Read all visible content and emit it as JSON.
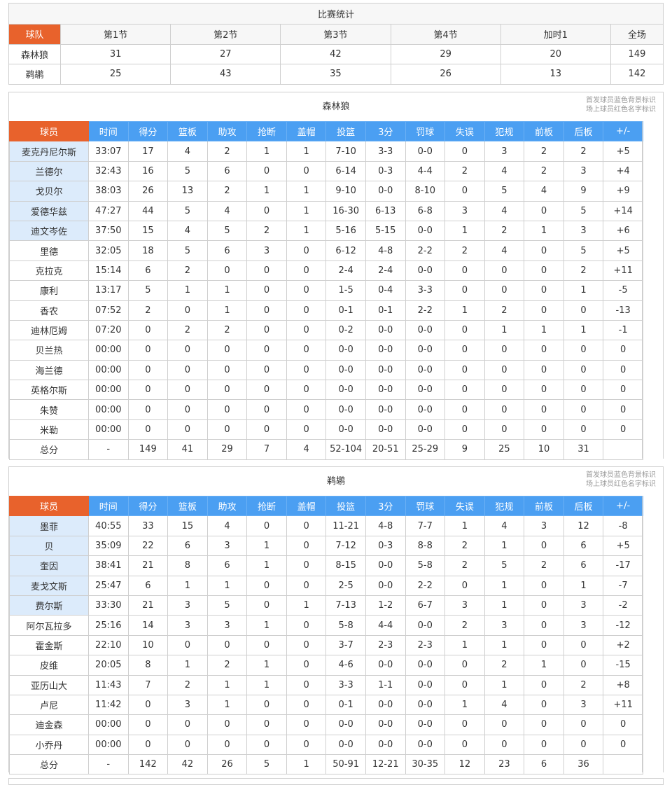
{
  "summary": {
    "title": "比赛统计",
    "headers": [
      "球队",
      "第1节",
      "第2节",
      "第3节",
      "第4节",
      "加时1",
      "全场"
    ],
    "rows": [
      [
        "森林狼",
        "31",
        "27",
        "42",
        "29",
        "20",
        "149"
      ],
      [
        "鹈鹕",
        "25",
        "43",
        "35",
        "26",
        "13",
        "142"
      ]
    ]
  },
  "colors": {
    "accent": "#e8622c",
    "header_blue": "#4b9ff2",
    "starter_bg": "#dcebfb"
  },
  "columns": [
    "球员",
    "时间",
    "得分",
    "篮板",
    "助攻",
    "抢断",
    "盖帽",
    "投篮",
    "3分",
    "罚球",
    "失误",
    "犯规",
    "前板",
    "后板",
    "+/-"
  ],
  "teams": [
    {
      "name": "森林狼",
      "note1": "首发球员蓝色背景标识",
      "note2": "场上球员红色名字标识",
      "starters": 5,
      "rows": [
        [
          "麦克丹尼尔斯",
          "33:07",
          "17",
          "4",
          "2",
          "1",
          "1",
          "7-10",
          "3-3",
          "0-0",
          "0",
          "3",
          "2",
          "2",
          "+5"
        ],
        [
          "兰德尔",
          "32:43",
          "16",
          "5",
          "6",
          "0",
          "0",
          "6-14",
          "0-3",
          "4-4",
          "2",
          "4",
          "2",
          "3",
          "+4"
        ],
        [
          "戈贝尔",
          "38:03",
          "26",
          "13",
          "2",
          "1",
          "1",
          "9-10",
          "0-0",
          "8-10",
          "0",
          "5",
          "4",
          "9",
          "+9"
        ],
        [
          "爱德华兹",
          "47:27",
          "44",
          "5",
          "4",
          "0",
          "1",
          "16-30",
          "6-13",
          "6-8",
          "3",
          "4",
          "0",
          "5",
          "+14"
        ],
        [
          "迪文岑佐",
          "37:50",
          "15",
          "4",
          "5",
          "2",
          "1",
          "5-16",
          "5-15",
          "0-0",
          "1",
          "2",
          "1",
          "3",
          "+6"
        ],
        [
          "里德",
          "32:05",
          "18",
          "5",
          "6",
          "3",
          "0",
          "6-12",
          "4-8",
          "2-2",
          "2",
          "4",
          "0",
          "5",
          "+5"
        ],
        [
          "克拉克",
          "15:14",
          "6",
          "2",
          "0",
          "0",
          "0",
          "2-4",
          "2-4",
          "0-0",
          "0",
          "0",
          "0",
          "2",
          "+11"
        ],
        [
          "康利",
          "13:17",
          "5",
          "1",
          "1",
          "0",
          "0",
          "1-5",
          "0-4",
          "3-3",
          "0",
          "0",
          "0",
          "1",
          "-5"
        ],
        [
          "香农",
          "07:52",
          "2",
          "0",
          "1",
          "0",
          "0",
          "0-1",
          "0-1",
          "2-2",
          "1",
          "2",
          "0",
          "0",
          "-13"
        ],
        [
          "迪林厄姆",
          "07:20",
          "0",
          "2",
          "2",
          "0",
          "0",
          "0-2",
          "0-0",
          "0-0",
          "0",
          "1",
          "1",
          "1",
          "-1"
        ],
        [
          "贝兰热",
          "00:00",
          "0",
          "0",
          "0",
          "0",
          "0",
          "0-0",
          "0-0",
          "0-0",
          "0",
          "0",
          "0",
          "0",
          "0"
        ],
        [
          "海兰德",
          "00:00",
          "0",
          "0",
          "0",
          "0",
          "0",
          "0-0",
          "0-0",
          "0-0",
          "0",
          "0",
          "0",
          "0",
          "0"
        ],
        [
          "英格尔斯",
          "00:00",
          "0",
          "0",
          "0",
          "0",
          "0",
          "0-0",
          "0-0",
          "0-0",
          "0",
          "0",
          "0",
          "0",
          "0"
        ],
        [
          "朱赞",
          "00:00",
          "0",
          "0",
          "0",
          "0",
          "0",
          "0-0",
          "0-0",
          "0-0",
          "0",
          "0",
          "0",
          "0",
          "0"
        ],
        [
          "米勒",
          "00:00",
          "0",
          "0",
          "0",
          "0",
          "0",
          "0-0",
          "0-0",
          "0-0",
          "0",
          "0",
          "0",
          "0",
          "0"
        ],
        [
          "总分",
          "-",
          "149",
          "41",
          "29",
          "7",
          "4",
          "52-104",
          "20-51",
          "25-29",
          "9",
          "25",
          "10",
          "31",
          ""
        ]
      ]
    },
    {
      "name": "鹈鹕",
      "note1": "首发球员蓝色背景标识",
      "note2": "场上球员红色名字标识",
      "starters": 5,
      "rows": [
        [
          "墨菲",
          "40:55",
          "33",
          "15",
          "4",
          "0",
          "0",
          "11-21",
          "4-8",
          "7-7",
          "1",
          "4",
          "3",
          "12",
          "-8"
        ],
        [
          "贝",
          "35:09",
          "22",
          "6",
          "3",
          "1",
          "0",
          "7-12",
          "0-3",
          "8-8",
          "2",
          "1",
          "0",
          "6",
          "+5"
        ],
        [
          "奎因",
          "38:41",
          "21",
          "8",
          "6",
          "1",
          "0",
          "8-15",
          "0-0",
          "5-8",
          "2",
          "5",
          "2",
          "6",
          "-17"
        ],
        [
          "麦戈文斯",
          "25:47",
          "6",
          "1",
          "1",
          "0",
          "0",
          "2-5",
          "0-0",
          "2-2",
          "0",
          "1",
          "0",
          "1",
          "-7"
        ],
        [
          "费尔斯",
          "33:30",
          "21",
          "3",
          "5",
          "0",
          "1",
          "7-13",
          "1-2",
          "6-7",
          "3",
          "1",
          "0",
          "3",
          "-2"
        ],
        [
          "阿尔瓦拉多",
          "25:16",
          "14",
          "3",
          "3",
          "1",
          "0",
          "5-8",
          "4-4",
          "0-0",
          "2",
          "3",
          "0",
          "3",
          "-12"
        ],
        [
          "霍金斯",
          "22:10",
          "10",
          "0",
          "0",
          "0",
          "0",
          "3-7",
          "2-3",
          "2-3",
          "1",
          "1",
          "0",
          "0",
          "+2"
        ],
        [
          "皮维",
          "20:05",
          "8",
          "1",
          "2",
          "1",
          "0",
          "4-6",
          "0-0",
          "0-0",
          "0",
          "2",
          "1",
          "0",
          "-15"
        ],
        [
          "亚历山大",
          "11:43",
          "7",
          "2",
          "1",
          "1",
          "0",
          "3-3",
          "1-1",
          "0-0",
          "0",
          "1",
          "0",
          "2",
          "+8"
        ],
        [
          "卢尼",
          "11:42",
          "0",
          "3",
          "1",
          "0",
          "0",
          "0-1",
          "0-0",
          "0-0",
          "1",
          "4",
          "0",
          "3",
          "+11"
        ],
        [
          "迪金森",
          "00:00",
          "0",
          "0",
          "0",
          "0",
          "0",
          "0-0",
          "0-0",
          "0-0",
          "0",
          "0",
          "0",
          "0",
          "0"
        ],
        [
          "小乔丹",
          "00:00",
          "0",
          "0",
          "0",
          "0",
          "0",
          "0-0",
          "0-0",
          "0-0",
          "0",
          "0",
          "0",
          "0",
          "0"
        ],
        [
          "总分",
          "-",
          "142",
          "42",
          "26",
          "5",
          "1",
          "50-91",
          "12-21",
          "30-35",
          "12",
          "23",
          "6",
          "36",
          ""
        ]
      ]
    }
  ]
}
